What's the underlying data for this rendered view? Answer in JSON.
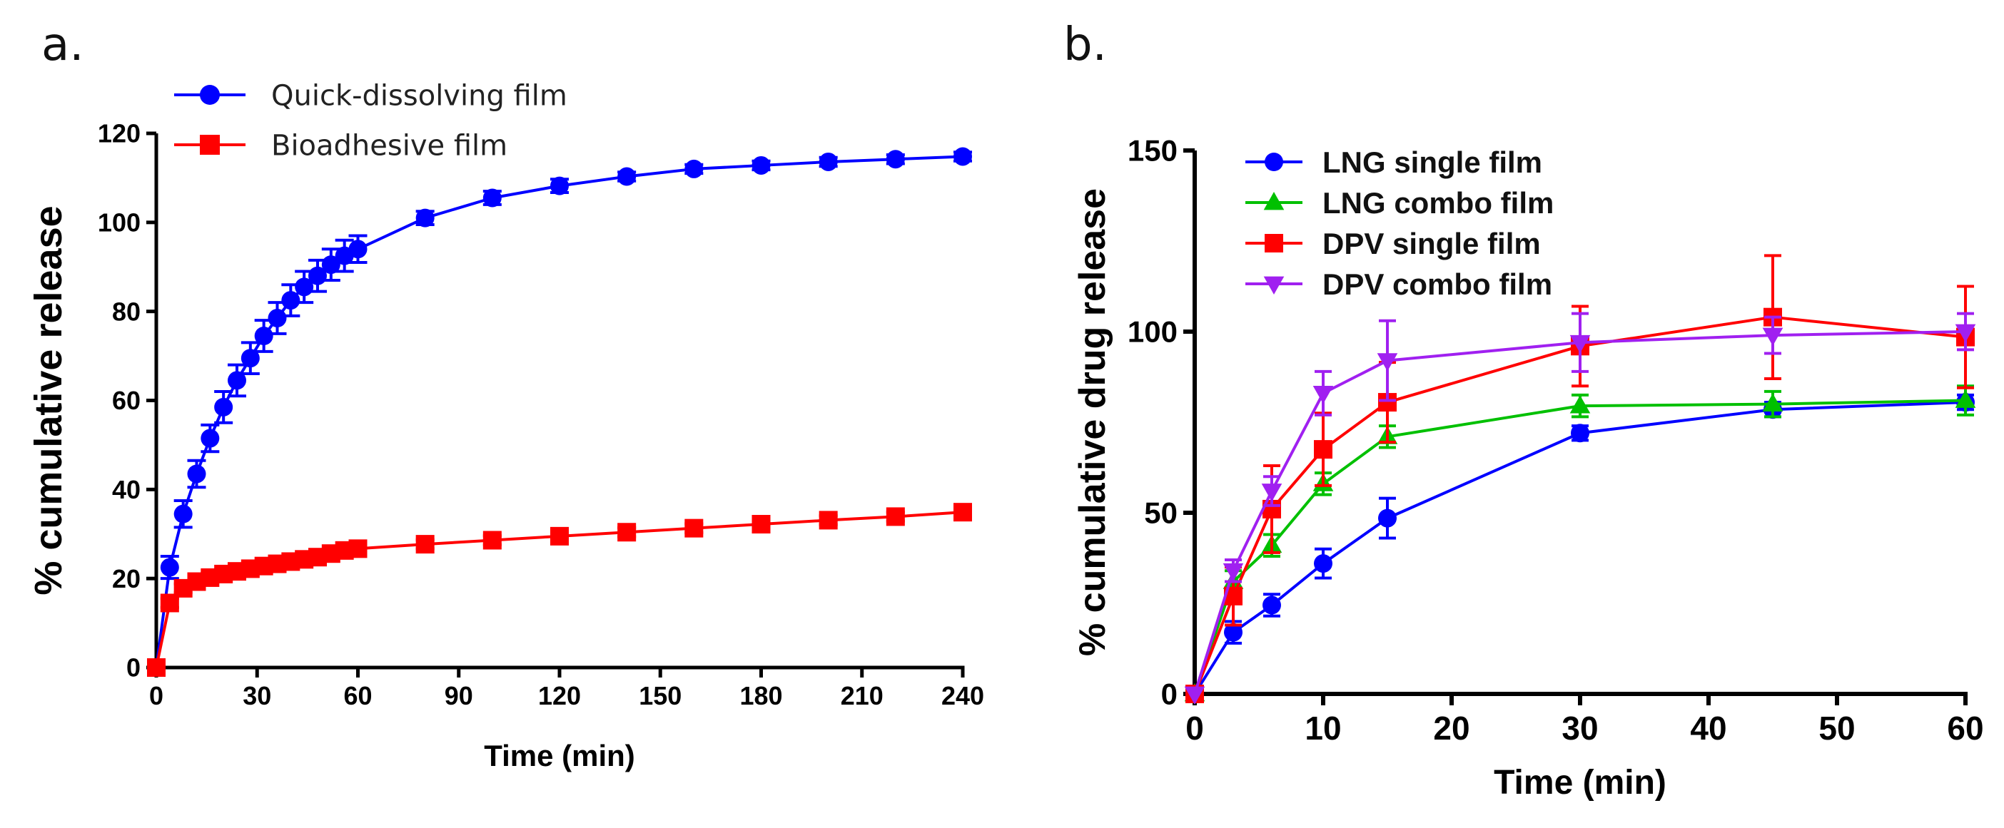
{
  "chart_data": [
    {
      "panel": "a.",
      "type": "line",
      "xlabel": "Time (min)",
      "ylabel": "% cumulative release",
      "xlim": [
        0,
        240
      ],
      "ylim": [
        0,
        120
      ],
      "xticks": [
        0,
        30,
        60,
        90,
        120,
        150,
        180,
        210,
        240
      ],
      "yticks": [
        0,
        20,
        40,
        60,
        80,
        100,
        120
      ],
      "legend_position": "top-left",
      "series": [
        {
          "name": "Quick-dissolving film",
          "color": "#0000ff",
          "marker": "circle",
          "x": [
            0,
            4,
            8,
            12,
            16,
            20,
            24,
            28,
            32,
            36,
            40,
            44,
            48,
            52,
            56,
            60,
            80,
            100,
            120,
            140,
            160,
            180,
            200,
            220,
            240
          ],
          "y": [
            0,
            22.5,
            34.5,
            43.5,
            51.5,
            58.5,
            64.5,
            69.5,
            74.5,
            78.5,
            82.5,
            85.5,
            88,
            90.5,
            92.5,
            94,
            101,
            105.5,
            108.2,
            110.3,
            112,
            112.8,
            113.6,
            114.2,
            114.8
          ],
          "err": [
            0,
            2.5,
            3,
            3,
            3,
            3.5,
            3.5,
            3.5,
            3.5,
            3.5,
            3.5,
            3.5,
            3.5,
            3.5,
            3.5,
            3,
            1.5,
            1.5,
            1.5,
            1,
            1,
            1,
            1,
            1,
            1
          ]
        },
        {
          "name": "Bioadhesive film",
          "color": "#ff0000",
          "marker": "square",
          "x": [
            0,
            4,
            8,
            12,
            16,
            20,
            24,
            28,
            32,
            36,
            40,
            44,
            48,
            52,
            56,
            60,
            80,
            100,
            120,
            140,
            160,
            180,
            200,
            220,
            240
          ],
          "y": [
            0,
            14.5,
            17.8,
            19.3,
            20.2,
            21,
            21.6,
            22.2,
            22.8,
            23.3,
            23.8,
            24.3,
            24.8,
            25.6,
            26.3,
            26.7,
            27.7,
            28.6,
            29.5,
            30.4,
            31.3,
            32.2,
            33.1,
            33.9,
            34.9
          ],
          "err": [
            0,
            1,
            1,
            1,
            1,
            1,
            1,
            1,
            1,
            1,
            1,
            1,
            1,
            1,
            1,
            1,
            1,
            1,
            1,
            1,
            1,
            1,
            1,
            1,
            1
          ]
        }
      ]
    },
    {
      "panel": "b.",
      "type": "line",
      "xlabel": "Time (min)",
      "ylabel": "% cumulative drug release",
      "xlim": [
        0,
        60
      ],
      "ylim": [
        0,
        150
      ],
      "xticks": [
        0,
        10,
        20,
        30,
        40,
        50,
        60
      ],
      "yticks": [
        0,
        50,
        100,
        150
      ],
      "legend_position": "top-left",
      "series": [
        {
          "name": "LNG single film",
          "color": "#0000ff",
          "marker": "circle",
          "x": [
            0,
            3,
            6,
            10,
            15,
            30,
            45,
            60
          ],
          "y": [
            0,
            17,
            24.5,
            36,
            48.5,
            72,
            78.5,
            80.5
          ],
          "err": [
            0,
            3,
            3,
            4,
            5.5,
            2,
            2,
            2
          ]
        },
        {
          "name": "LNG combo film",
          "color": "#00c000",
          "marker": "triangle-up",
          "x": [
            0,
            3,
            6,
            10,
            15,
            30,
            45,
            60
          ],
          "y": [
            0,
            31,
            41,
            58,
            71,
            79.5,
            80,
            81
          ],
          "err": [
            0,
            3,
            3,
            3,
            3,
            3,
            3.5,
            4
          ]
        },
        {
          "name": "DPV single film",
          "color": "#ff0000",
          "marker": "square",
          "x": [
            0,
            3,
            6,
            10,
            15,
            30,
            45,
            60
          ],
          "y": [
            0,
            27,
            51,
            67.5,
            80.5,
            96,
            104,
            98.5
          ],
          "err": [
            0,
            8,
            12,
            10,
            11,
            11,
            17,
            14
          ]
        },
        {
          "name": "DPV combo film",
          "color": "#a020f0",
          "marker": "triangle-down",
          "x": [
            0,
            3,
            6,
            10,
            15,
            30,
            45,
            60
          ],
          "y": [
            0,
            34,
            56,
            83,
            92,
            97,
            99,
            100
          ],
          "err": [
            0,
            3,
            4,
            6,
            11,
            8,
            5,
            5
          ]
        }
      ]
    }
  ]
}
